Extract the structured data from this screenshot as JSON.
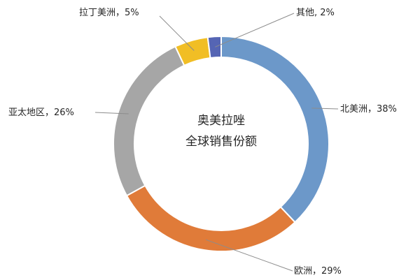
{
  "chart_data": {
    "type": "pie",
    "title": "",
    "center_text": [
      "奥美拉唑",
      "全球销售份额"
    ],
    "slices": [
      {
        "name": "北美洲",
        "value": 38,
        "color": "#6c98c9",
        "label": "北美洲，38%"
      },
      {
        "name": "欧洲",
        "value": 29,
        "color": "#e07b39",
        "label": "欧洲，29%"
      },
      {
        "name": "亚太地区",
        "value": 26,
        "color": "#a6a6a6",
        "label": "亚太地区，26%"
      },
      {
        "name": "拉丁美洲",
        "value": 5,
        "color": "#f1be25",
        "label": "拉丁美洲，5%"
      },
      {
        "name": "其他",
        "value": 2,
        "color": "#5565b4",
        "label": "其他, 2%"
      }
    ],
    "legend": "none"
  }
}
